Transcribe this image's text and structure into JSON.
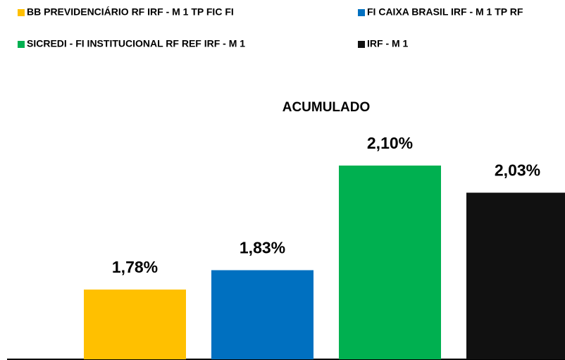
{
  "chart_data": {
    "type": "bar",
    "title": "ACUMULADO",
    "legend": "top",
    "ylim": [
      1.6,
      2.2
    ],
    "series": [
      {
        "name": "BB PREVIDENCIÁRIO RF IRF - M 1 TP FIC FI",
        "color": "#FFC000",
        "values": [
          1.78
        ],
        "value_labels": [
          "1,78%"
        ]
      },
      {
        "name": "FI CAIXA BRASIL IRF - M 1 TP RF",
        "color": "#0070C0",
        "values": [
          1.83
        ],
        "value_labels": [
          "1,83%"
        ]
      },
      {
        "name": "SICREDI - FI INSTITUCIONAL RF REF IRF - M 1",
        "color": "#00B050",
        "values": [
          2.1
        ],
        "value_labels": [
          "2,10%"
        ]
      },
      {
        "name": "IRF - M 1",
        "color": "#111111",
        "values": [
          2.03
        ],
        "value_labels": [
          "2,03%"
        ]
      }
    ]
  }
}
